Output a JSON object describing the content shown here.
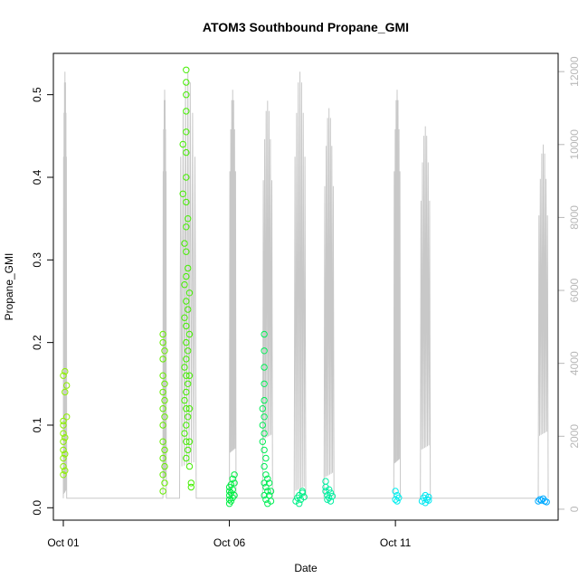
{
  "chart_data": {
    "type": "scatter",
    "title": "ATOM3 Southbound Propane_GMI",
    "xlabel": "Date",
    "ylabel": "Propane_GMI",
    "x_unit": "day of October (decimal)",
    "xlim": [
      0.7,
      15.9
    ],
    "ylim": [
      -0.015,
      0.55
    ],
    "y2lim": [
      -300,
      12500
    ],
    "x_ticks": [
      {
        "value": 1,
        "label": "Oct 01"
      },
      {
        "value": 6,
        "label": "Oct 06"
      },
      {
        "value": 11,
        "label": "Oct 11"
      }
    ],
    "y_ticks": [
      {
        "value": 0.0,
        "label": "0.0"
      },
      {
        "value": 0.1,
        "label": "0.1"
      },
      {
        "value": 0.2,
        "label": "0.2"
      },
      {
        "value": 0.3,
        "label": "0.3"
      },
      {
        "value": 0.4,
        "label": "0.4"
      },
      {
        "value": 0.5,
        "label": "0.5"
      }
    ],
    "y2_ticks": [
      {
        "value": 0,
        "label": "0"
      },
      {
        "value": 2000,
        "label": "2000"
      },
      {
        "value": 4000,
        "label": "4000"
      },
      {
        "value": 6000,
        "label": "6000"
      },
      {
        "value": 8000,
        "label": "8000"
      },
      {
        "value": 10000,
        "label": "10000"
      },
      {
        "value": 12000,
        "label": "12000"
      }
    ],
    "point_style": "open-circle",
    "altitude_color": "#c8c8c8",
    "series": [
      {
        "color": "#8cf000",
        "points": [
          [
            1.0,
            0.04
          ],
          [
            1.0,
            0.05
          ],
          [
            1.0,
            0.06
          ],
          [
            1.0,
            0.07
          ],
          [
            1.0,
            0.08
          ],
          [
            1.0,
            0.09
          ],
          [
            1.0,
            0.1
          ],
          [
            1.0,
            0.105
          ],
          [
            1.0,
            0.16
          ],
          [
            1.05,
            0.045
          ],
          [
            1.05,
            0.065
          ],
          [
            1.05,
            0.085
          ],
          [
            1.05,
            0.14
          ],
          [
            1.05,
            0.165
          ],
          [
            1.1,
            0.11
          ],
          [
            1.1,
            0.148
          ]
        ]
      },
      {
        "color": "#66ee00",
        "points": [
          [
            4.0,
            0.02
          ],
          [
            4.0,
            0.04
          ],
          [
            4.0,
            0.06
          ],
          [
            4.0,
            0.08
          ],
          [
            4.0,
            0.1
          ],
          [
            4.0,
            0.12
          ],
          [
            4.0,
            0.14
          ],
          [
            4.0,
            0.16
          ],
          [
            4.0,
            0.18
          ],
          [
            4.0,
            0.2
          ],
          [
            4.0,
            0.21
          ],
          [
            4.05,
            0.03
          ],
          [
            4.05,
            0.05
          ],
          [
            4.05,
            0.07
          ],
          [
            4.05,
            0.11
          ],
          [
            4.05,
            0.13
          ],
          [
            4.05,
            0.15
          ],
          [
            4.05,
            0.19
          ]
        ]
      },
      {
        "color": "#44ee00",
        "points": [
          [
            4.7,
            0.53
          ],
          [
            4.7,
            0.515
          ],
          [
            4.7,
            0.5
          ],
          [
            4.7,
            0.48
          ],
          [
            4.7,
            0.455
          ],
          [
            4.7,
            0.43
          ],
          [
            4.7,
            0.4
          ],
          [
            4.7,
            0.37
          ],
          [
            4.7,
            0.34
          ],
          [
            4.7,
            0.31
          ],
          [
            4.7,
            0.28
          ],
          [
            4.7,
            0.25
          ],
          [
            4.7,
            0.22
          ],
          [
            4.7,
            0.2
          ],
          [
            4.7,
            0.18
          ],
          [
            4.7,
            0.16
          ],
          [
            4.7,
            0.14
          ],
          [
            4.7,
            0.12
          ],
          [
            4.7,
            0.1
          ],
          [
            4.7,
            0.08
          ],
          [
            4.7,
            0.06
          ],
          [
            4.65,
            0.32
          ],
          [
            4.65,
            0.27
          ],
          [
            4.65,
            0.23
          ],
          [
            4.65,
            0.17
          ],
          [
            4.65,
            0.13
          ],
          [
            4.65,
            0.09
          ],
          [
            4.75,
            0.35
          ],
          [
            4.75,
            0.29
          ],
          [
            4.75,
            0.24
          ],
          [
            4.75,
            0.19
          ],
          [
            4.75,
            0.15
          ],
          [
            4.75,
            0.11
          ],
          [
            4.75,
            0.07
          ],
          [
            4.8,
            0.26
          ],
          [
            4.8,
            0.21
          ],
          [
            4.8,
            0.16
          ],
          [
            4.8,
            0.12
          ],
          [
            4.8,
            0.08
          ],
          [
            4.8,
            0.05
          ],
          [
            4.85,
            0.03
          ],
          [
            4.85,
            0.025
          ],
          [
            4.6,
            0.44
          ],
          [
            4.6,
            0.38
          ]
        ]
      },
      {
        "color": "#00ee44",
        "points": [
          [
            6.0,
            0.005
          ],
          [
            6.0,
            0.01
          ],
          [
            6.0,
            0.015
          ],
          [
            6.0,
            0.02
          ],
          [
            6.0,
            0.025
          ],
          [
            6.05,
            0.008
          ],
          [
            6.05,
            0.018
          ],
          [
            6.05,
            0.028
          ],
          [
            6.1,
            0.012
          ],
          [
            6.1,
            0.022
          ],
          [
            6.1,
            0.035
          ],
          [
            6.15,
            0.04
          ],
          [
            6.15,
            0.03
          ],
          [
            6.15,
            0.015
          ]
        ]
      },
      {
        "color": "#00ee55",
        "points": [
          [
            7.05,
            0.21
          ],
          [
            7.05,
            0.19
          ],
          [
            7.05,
            0.17
          ],
          [
            7.05,
            0.15
          ],
          [
            7.05,
            0.13
          ],
          [
            7.05,
            0.11
          ],
          [
            7.05,
            0.09
          ],
          [
            7.05,
            0.07
          ],
          [
            7.05,
            0.05
          ],
          [
            7.05,
            0.03
          ],
          [
            7.05,
            0.015
          ],
          [
            7.1,
            0.06
          ],
          [
            7.1,
            0.04
          ],
          [
            7.1,
            0.025
          ],
          [
            7.1,
            0.01
          ],
          [
            7.15,
            0.035
          ],
          [
            7.15,
            0.02
          ],
          [
            7.15,
            0.005
          ],
          [
            7.2,
            0.03
          ],
          [
            7.2,
            0.015
          ],
          [
            7.25,
            0.02
          ],
          [
            7.25,
            0.008
          ],
          [
            7.0,
            0.08
          ],
          [
            7.0,
            0.1
          ],
          [
            7.0,
            0.12
          ]
        ]
      },
      {
        "color": "#00ee88",
        "points": [
          [
            8.0,
            0.008
          ],
          [
            8.05,
            0.012
          ],
          [
            8.1,
            0.015
          ],
          [
            8.15,
            0.01
          ],
          [
            8.2,
            0.018
          ],
          [
            8.25,
            0.013
          ],
          [
            8.1,
            0.005
          ],
          [
            8.2,
            0.02
          ]
        ]
      },
      {
        "color": "#00eea0",
        "points": [
          [
            8.9,
            0.032
          ],
          [
            8.9,
            0.025
          ],
          [
            8.9,
            0.02
          ],
          [
            8.95,
            0.015
          ],
          [
            8.95,
            0.01
          ],
          [
            9.0,
            0.012
          ],
          [
            9.0,
            0.022
          ],
          [
            9.05,
            0.018
          ],
          [
            9.05,
            0.008
          ],
          [
            9.1,
            0.014
          ]
        ]
      },
      {
        "color": "#00eeee",
        "points": [
          [
            11.0,
            0.01
          ],
          [
            11.05,
            0.008
          ],
          [
            11.1,
            0.012
          ],
          [
            11.0,
            0.02
          ],
          [
            11.05,
            0.015
          ]
        ]
      },
      {
        "color": "#00e6f0",
        "points": [
          [
            11.8,
            0.008
          ],
          [
            11.85,
            0.012
          ],
          [
            11.9,
            0.015
          ],
          [
            11.95,
            0.01
          ],
          [
            12.0,
            0.013
          ],
          [
            11.9,
            0.006
          ],
          [
            12.0,
            0.009
          ]
        ]
      },
      {
        "color": "#00aaff",
        "points": [
          [
            15.3,
            0.008
          ],
          [
            15.35,
            0.01
          ],
          [
            15.4,
            0.009
          ],
          [
            15.45,
            0.011
          ],
          [
            15.5,
            0.008
          ],
          [
            15.55,
            0.007
          ]
        ]
      }
    ],
    "altitude_flights": [
      {
        "start": 1.0,
        "end": 1.1,
        "peak": 12000
      },
      {
        "start": 4.0,
        "end": 4.1,
        "peak": 11500
      },
      {
        "start": 4.5,
        "end": 5.0,
        "peak": 12000
      },
      {
        "start": 6.0,
        "end": 6.2,
        "peak": 11500
      },
      {
        "start": 7.0,
        "end": 7.3,
        "peak": 11200
      },
      {
        "start": 7.95,
        "end": 8.3,
        "peak": 12000
      },
      {
        "start": 8.85,
        "end": 9.15,
        "peak": 11000
      },
      {
        "start": 10.95,
        "end": 11.15,
        "peak": 11500
      },
      {
        "start": 11.75,
        "end": 12.05,
        "peak": 10500
      },
      {
        "start": 15.3,
        "end": 15.6,
        "peak": 10000
      }
    ]
  }
}
